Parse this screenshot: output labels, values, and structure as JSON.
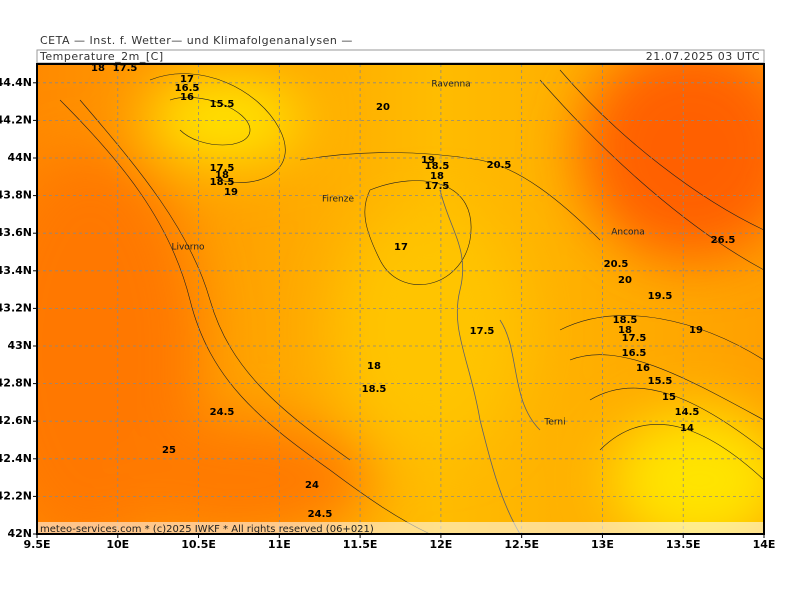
{
  "header": {
    "institute": "CETA — Inst. f. Wetter— und Klimafolgenanalysen —",
    "field": "Temperature_2m_[C]",
    "valid": "21.07.2025 03 UTC"
  },
  "map": {
    "xlim": [
      9.5,
      14
    ],
    "ylim": [
      42,
      44.5
    ],
    "grid": true,
    "xticks": [
      {
        "value": 9.5,
        "label": "9.5E"
      },
      {
        "value": 10,
        "label": "10E"
      },
      {
        "value": 10.5,
        "label": "10.5E"
      },
      {
        "value": 11,
        "label": "11E"
      },
      {
        "value": 11.5,
        "label": "11.5E"
      },
      {
        "value": 12,
        "label": "12E"
      },
      {
        "value": 12.5,
        "label": "12.5E"
      },
      {
        "value": 13,
        "label": "13E"
      },
      {
        "value": 13.5,
        "label": "13.5E"
      },
      {
        "value": 14,
        "label": "14E"
      }
    ],
    "yticks": [
      {
        "value": 42,
        "label": "42N"
      },
      {
        "value": 42.2,
        "label": "42.2N"
      },
      {
        "value": 42.4,
        "label": "42.4N"
      },
      {
        "value": 42.6,
        "label": "42.6N"
      },
      {
        "value": 42.8,
        "label": "42.8N"
      },
      {
        "value": 43,
        "label": "43N"
      },
      {
        "value": 43.2,
        "label": "43.2N"
      },
      {
        "value": 43.4,
        "label": "43.4N"
      },
      {
        "value": 43.6,
        "label": "43.6N"
      },
      {
        "value": 43.8,
        "label": "43.8N"
      },
      {
        "value": 44,
        "label": "44N"
      },
      {
        "value": 44.2,
        "label": "44.2N"
      },
      {
        "value": 44.4,
        "label": "44.4N"
      }
    ],
    "cities": [
      "Ravenna",
      "Firenze",
      "Livorno",
      "Ancona",
      "Terni"
    ],
    "contour_labels": [
      18,
      17.5,
      17,
      16.5,
      16,
      15.5,
      20,
      17.5,
      18,
      18.5,
      19,
      19,
      18.5,
      18,
      17.5,
      20.5,
      17,
      26.5,
      20.5,
      20,
      19.5,
      18.5,
      18,
      17.5,
      19,
      17.5,
      16.5,
      16,
      15.5,
      15,
      14.5,
      14,
      18,
      18.5,
      24.5,
      25,
      24,
      24.5
    ]
  },
  "footer": "meteo-services.com * (c)2025 IWKF * All rights reserved (06+021)"
}
